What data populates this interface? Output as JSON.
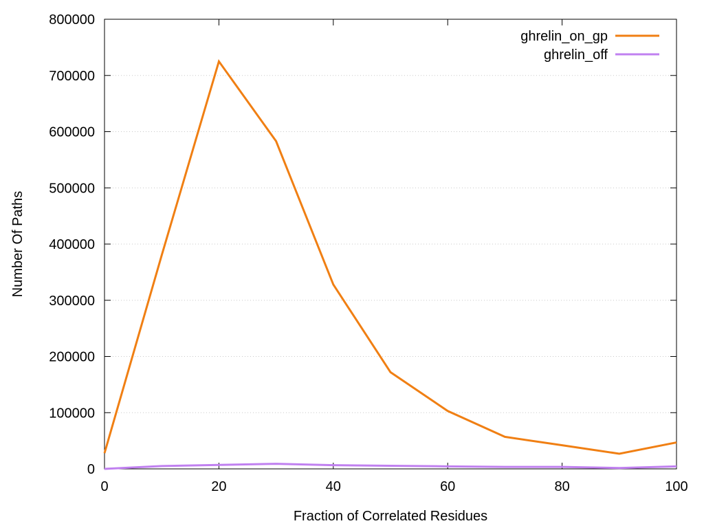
{
  "chart_data": {
    "type": "line",
    "xlabel": "Fraction of Correlated Residues",
    "ylabel": "Number Of Paths",
    "xlim": [
      0,
      100
    ],
    "ylim": [
      0,
      800000
    ],
    "xticks": [
      0,
      20,
      40,
      60,
      80,
      100
    ],
    "yticks": [
      0,
      100000,
      200000,
      300000,
      400000,
      500000,
      600000,
      700000,
      800000
    ],
    "x_tick_labels": [
      "0",
      "20",
      "40",
      "60",
      "80",
      "100"
    ],
    "y_tick_labels": [
      "0",
      "100000",
      "200000",
      "300000",
      "400000",
      "500000",
      "600000",
      "700000",
      "800000"
    ],
    "grid": true,
    "legend_position": "top-right",
    "x": [
      0,
      10,
      20,
      30,
      40,
      50,
      60,
      70,
      80,
      90,
      100
    ],
    "series": [
      {
        "name": "ghrelin_on_gp",
        "color": "#f07f13",
        "values": [
          28000,
          380000,
          725000,
          583000,
          328000,
          172000,
          103000,
          57000,
          42000,
          27000,
          47000
        ]
      },
      {
        "name": "ghrelin_off",
        "color": "#c080f0",
        "values": [
          0,
          5000,
          7000,
          9000,
          6500,
          5500,
          4500,
          3500,
          3500,
          1500,
          4500
        ]
      }
    ]
  }
}
